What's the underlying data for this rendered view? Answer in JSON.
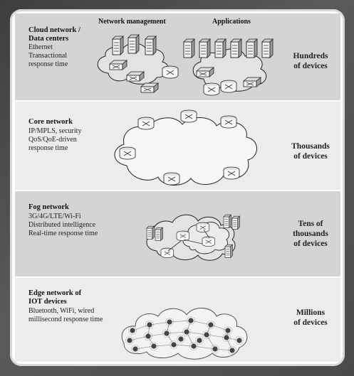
{
  "tiers": [
    {
      "title_lines": [
        "Cloud network /",
        "Data centers"
      ],
      "desc_lines": [
        "Ethernet",
        "Transactional",
        "response time"
      ],
      "count_lines": [
        "Hundreds",
        "of devices"
      ]
    },
    {
      "title_lines": [
        "Core network"
      ],
      "desc_lines": [
        "IP/MPLS, security",
        "QoS/QoE-driven",
        "response time"
      ],
      "count_lines": [
        "Thousands",
        "of devices"
      ]
    },
    {
      "title_lines": [
        "Fog network"
      ],
      "desc_lines": [
        "3G/4G/LTE/Wi-Fi",
        "Distributed intelligence",
        "Real-time response time"
      ],
      "count_lines": [
        "Tens of",
        "thousands",
        "of devices"
      ]
    },
    {
      "title_lines": [
        "Edge network of",
        "IOT devices"
      ],
      "desc_lines": [
        "Bluetooth, WiFi, wired",
        "millisecond response time"
      ],
      "count_lines": [
        "Millions",
        "of devices"
      ]
    }
  ],
  "cloud_headers": {
    "left": "Network management",
    "right": "Applications"
  },
  "colors": {
    "frame": "#4a4a4a",
    "band_shade": "#d4d4d4",
    "band_light": "#ececec",
    "device": "#e8e8e8",
    "node": "#555555"
  }
}
